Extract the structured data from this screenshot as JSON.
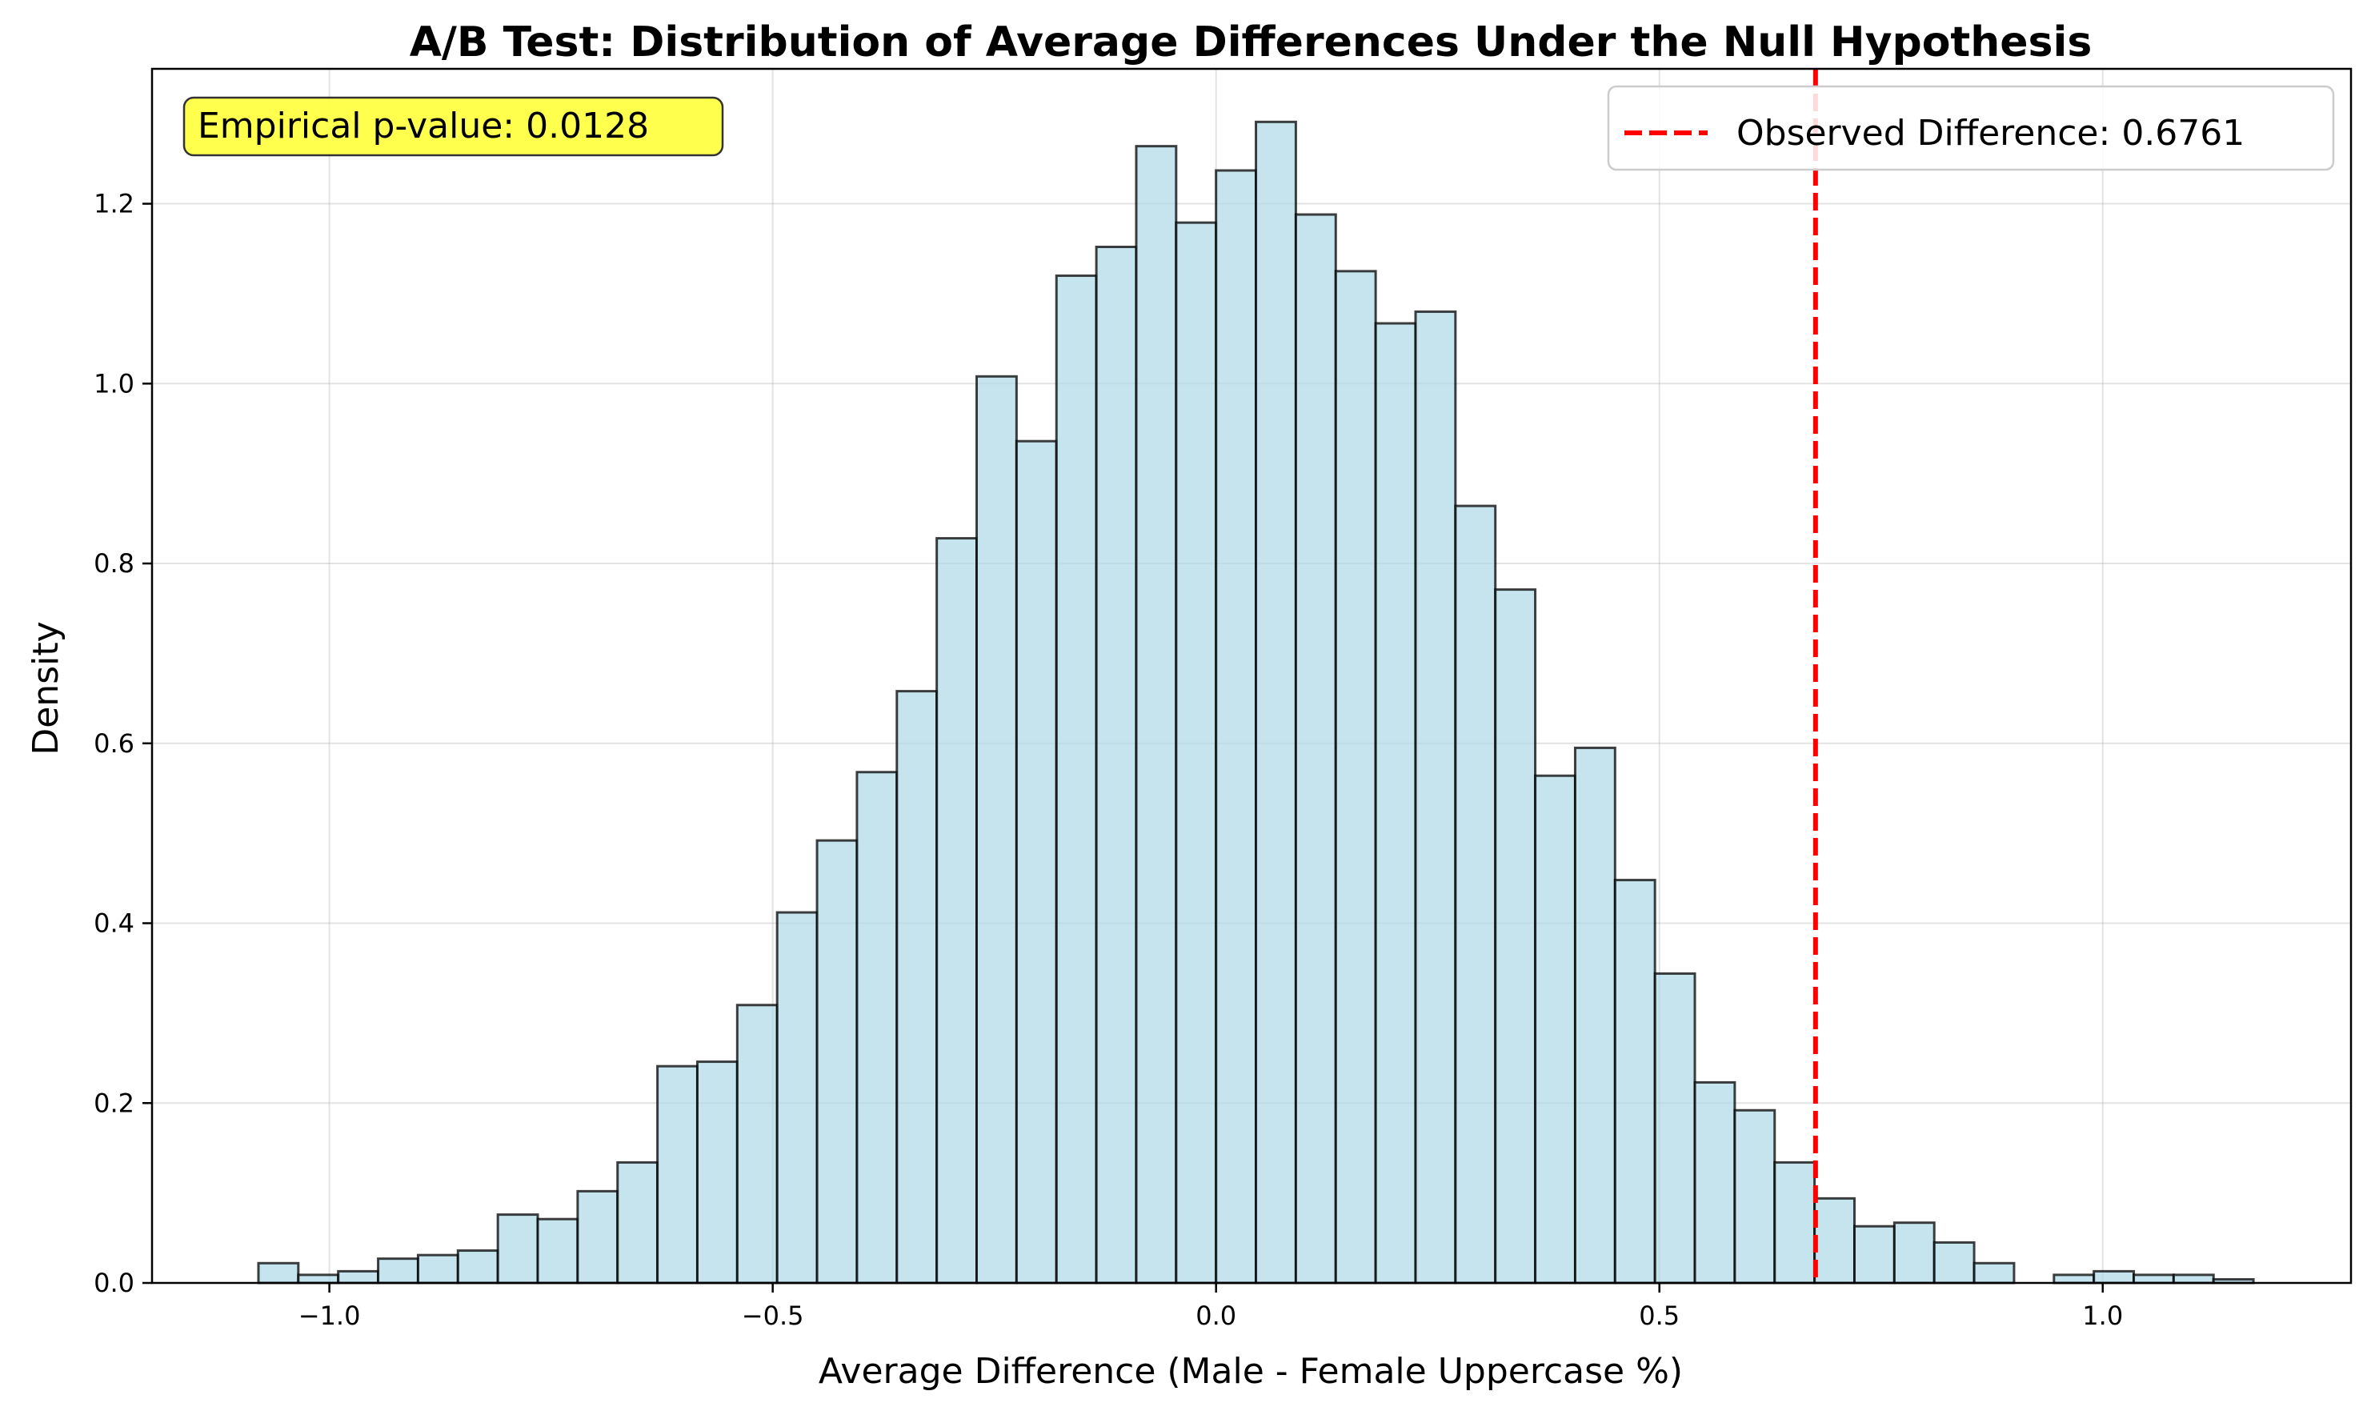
{
  "chart_data": {
    "type": "bar",
    "title": "A/B Test: Distribution of Average Differences Under the Null Hypothesis",
    "xlabel": "Average Difference (Male - Female Uppercase %)",
    "ylabel": "Density",
    "xlim": [
      -1.2,
      1.28
    ],
    "ylim": [
      0,
      1.35
    ],
    "xticks": [
      -1.0,
      -0.5,
      0.0,
      0.5,
      1.0
    ],
    "xtick_labels": [
      "−1.0",
      "−0.5",
      "0.0",
      "0.5",
      "1.0"
    ],
    "yticks": [
      0.0,
      0.2,
      0.4,
      0.6,
      0.8,
      1.0,
      1.2
    ],
    "ytick_labels": [
      "0.0",
      "0.2",
      "0.4",
      "0.6",
      "0.8",
      "1.0",
      "1.2"
    ],
    "grid": true,
    "bar_color": "#add8e6",
    "bar_edge_color": "#000000",
    "bin_edges": [
      -1.08,
      -1.035,
      -0.99,
      -0.945,
      -0.9,
      -0.855,
      -0.81,
      -0.765,
      -0.72,
      -0.675,
      -0.63,
      -0.585,
      -0.54,
      -0.495,
      -0.45,
      -0.405,
      -0.36,
      -0.315,
      -0.27,
      -0.225,
      -0.18,
      -0.135,
      -0.09,
      -0.045,
      0.0,
      0.045,
      0.09,
      0.135,
      0.18,
      0.225,
      0.27,
      0.315,
      0.36,
      0.405,
      0.45,
      0.495,
      0.54,
      0.585,
      0.63,
      0.675,
      0.72,
      0.765,
      0.81,
      0.855,
      0.9,
      0.945,
      0.99,
      1.035,
      1.08,
      1.125,
      1.17
    ],
    "values": [
      0.022,
      0.009,
      0.013,
      0.027,
      0.031,
      0.036,
      0.076,
      0.071,
      0.102,
      0.134,
      0.241,
      0.246,
      0.309,
      0.412,
      0.492,
      0.568,
      0.658,
      0.828,
      1.008,
      0.936,
      1.12,
      1.152,
      1.264,
      1.179,
      1.237,
      1.291,
      1.188,
      1.125,
      1.067,
      1.08,
      0.864,
      0.771,
      0.564,
      0.595,
      0.448,
      0.344,
      0.223,
      0.192,
      0.134,
      0.094,
      0.063,
      0.067,
      0.045,
      0.022,
      0.0,
      0.009,
      0.013,
      0.009,
      0.009,
      0.004
    ],
    "observed_line": {
      "x": 0.6761,
      "color": "#ff0000",
      "style": "dashed",
      "label": "Observed Difference: 0.6761"
    },
    "annotation": {
      "text": "Empirical p-value: 0.0128",
      "placement": "top-left",
      "background": "#ffff44"
    },
    "legend": {
      "placement": "top-right",
      "entries": [
        "Observed Difference: 0.6761"
      ]
    }
  }
}
